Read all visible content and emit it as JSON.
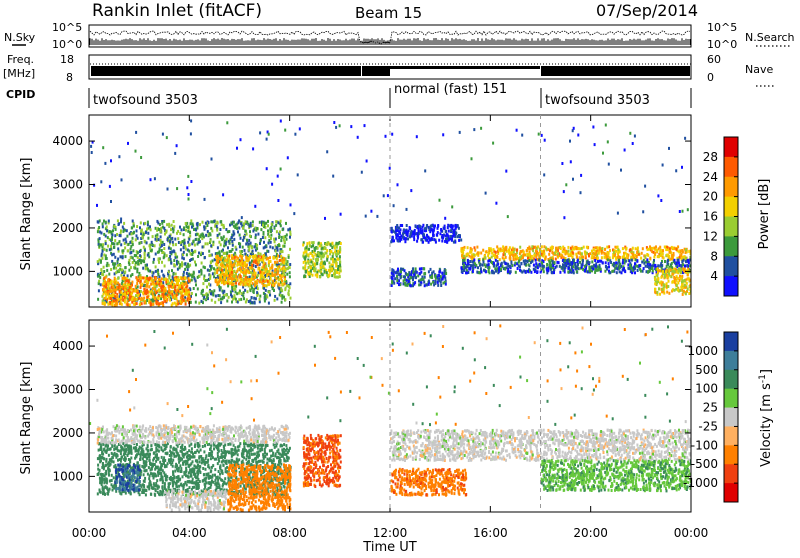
{
  "header": {
    "title": "Rankin Inlet (fitACF)",
    "beam": "Beam 15",
    "date": "07/Sep/2014"
  },
  "strips": {
    "nsky_label": "N.Sky",
    "nsky_ticks": [
      "10^5",
      "10^0"
    ],
    "nsearch_label": "N.Search",
    "nsearch_ticks": [
      "10^5",
      "10^0"
    ],
    "freq_label": "Freq.",
    "freq_unit": "[MHz]",
    "freq_ticks": [
      "18",
      "8"
    ],
    "nave_label": "Nave",
    "nave_ticks": [
      "60",
      "0"
    ],
    "cpid_label": "CPID",
    "cpid_segments": [
      "twofsound 3503",
      "normal (fast) 151",
      "twofsound 3503"
    ]
  },
  "x_axis": {
    "label": "Time UT",
    "ticks": [
      "00:00",
      "04:00",
      "08:00",
      "12:00",
      "16:00",
      "20:00",
      "00:00"
    ]
  },
  "chart_data": [
    {
      "type": "heatmap",
      "title": "",
      "ylabel": "Slant Range [km]",
      "xlabel": "Time UT",
      "x_range_hours": [
        0,
        24
      ],
      "ylim": [
        180,
        4600
      ],
      "yticks": [
        1000,
        2000,
        3000,
        4000
      ],
      "colorbar_label": "Power [dB]",
      "colorbar_ticks": [
        "28",
        "24",
        "20",
        "16",
        "12",
        "8",
        "4"
      ],
      "colorbar_colors": [
        "#e00000",
        "#ff5a00",
        "#ff9a00",
        "#f3d000",
        "#9acd32",
        "#3c9a3c",
        "#2050a0",
        "#1010ff"
      ],
      "scatter_bands": [
        {
          "t0": 0.3,
          "t1": 8.0,
          "r0": 300,
          "r1": 2200,
          "level_db": 14
        },
        {
          "t0": 0.5,
          "t1": 4.0,
          "r0": 250,
          "r1": 900,
          "level_db": 26
        },
        {
          "t0": 5.0,
          "t1": 7.8,
          "r0": 700,
          "r1": 1400,
          "level_db": 24
        },
        {
          "t0": 8.5,
          "t1": 10.0,
          "r0": 900,
          "r1": 1700,
          "level_db": 18
        },
        {
          "t0": 12.0,
          "t1": 14.2,
          "r0": 700,
          "r1": 1100,
          "level_db": 10
        },
        {
          "t0": 12.0,
          "t1": 14.8,
          "r0": 1700,
          "r1": 2100,
          "level_db": 6
        },
        {
          "t0": 14.8,
          "t1": 24.0,
          "r0": 1300,
          "r1": 1600,
          "level_db": 24
        },
        {
          "t0": 14.8,
          "t1": 24.0,
          "r0": 1000,
          "r1": 1300,
          "level_db": 10
        },
        {
          "t0": 22.5,
          "t1": 24.0,
          "r0": 500,
          "r1": 1100,
          "level_db": 22
        }
      ]
    },
    {
      "type": "heatmap",
      "title": "",
      "ylabel": "Slant Range [km]",
      "xlabel": "Time UT",
      "x_range_hours": [
        0,
        24
      ],
      "ylim": [
        180,
        4600
      ],
      "yticks": [
        1000,
        2000,
        3000,
        4000
      ],
      "colorbar_label": "Velocity [m s^-1]",
      "colorbar_ticks": [
        "1000",
        "500",
        "100",
        "25",
        "-25",
        "-100",
        "-500",
        "-1000"
      ],
      "colorbar_colors": [
        "#1a3fa0",
        "#3e7e9a",
        "#3a8a5a",
        "#66c83c",
        "#c8c8c8",
        "#ffb060",
        "#ff8000",
        "#f04010",
        "#e00000"
      ],
      "scatter_bands": [
        {
          "t0": 0.3,
          "t1": 8.0,
          "r0": 600,
          "r1": 1800,
          "velocity": 300
        },
        {
          "t0": 1.0,
          "t1": 2.0,
          "r0": 700,
          "r1": 1300,
          "velocity": 1000
        },
        {
          "t0": 0.3,
          "t1": 8.0,
          "r0": 1800,
          "r1": 2200,
          "velocity": 0
        },
        {
          "t0": 3.0,
          "t1": 5.5,
          "r0": 250,
          "r1": 700,
          "velocity": 0
        },
        {
          "t0": 5.5,
          "t1": 8.0,
          "r0": 250,
          "r1": 1300,
          "velocity": -200
        },
        {
          "t0": 8.5,
          "t1": 10.0,
          "r0": 800,
          "r1": 2000,
          "velocity": -600
        },
        {
          "t0": 12.0,
          "t1": 15.0,
          "r0": 600,
          "r1": 1200,
          "velocity": -400
        },
        {
          "t0": 12.0,
          "t1": 24.0,
          "r0": 1400,
          "r1": 2100,
          "velocity": 0
        },
        {
          "t0": 18.0,
          "t1": 24.0,
          "r0": 700,
          "r1": 1400,
          "velocity": 80
        }
      ]
    }
  ]
}
